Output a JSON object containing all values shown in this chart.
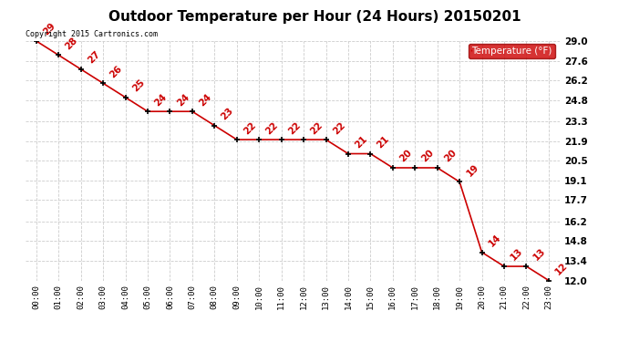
{
  "title": "Outdoor Temperature per Hour (24 Hours) 20150201",
  "copyright_text": "Copyright 2015 Cartronics.com",
  "legend_label": "Temperature (°F)",
  "hours": [
    "00:00",
    "01:00",
    "02:00",
    "03:00",
    "04:00",
    "05:00",
    "06:00",
    "07:00",
    "08:00",
    "09:00",
    "10:00",
    "11:00",
    "12:00",
    "13:00",
    "14:00",
    "15:00",
    "16:00",
    "17:00",
    "18:00",
    "19:00",
    "20:00",
    "21:00",
    "22:00",
    "23:00"
  ],
  "temps": [
    29,
    28,
    27,
    26,
    25,
    24,
    24,
    24,
    23,
    22,
    22,
    22,
    22,
    22,
    21,
    21,
    20,
    20,
    20,
    19,
    14,
    13,
    13,
    12
  ],
  "yticks": [
    12.0,
    13.4,
    14.8,
    16.2,
    17.7,
    19.1,
    20.5,
    21.9,
    23.3,
    24.8,
    26.2,
    27.6,
    29.0
  ],
  "yticklabels": [
    "12.0",
    "13.4",
    "14.8",
    "16.2",
    "17.7",
    "19.1",
    "20.5",
    "21.9",
    "23.3",
    "24.8",
    "26.2",
    "27.6",
    "29.0"
  ],
  "line_color": "#cc0000",
  "marker_color": "#000000",
  "grid_color": "#cccccc",
  "bg_color": "#ffffff",
  "title_fontsize": 11,
  "annotation_fontsize": 7.5,
  "legend_bg": "#cc0000",
  "legend_fg": "#ffffff"
}
